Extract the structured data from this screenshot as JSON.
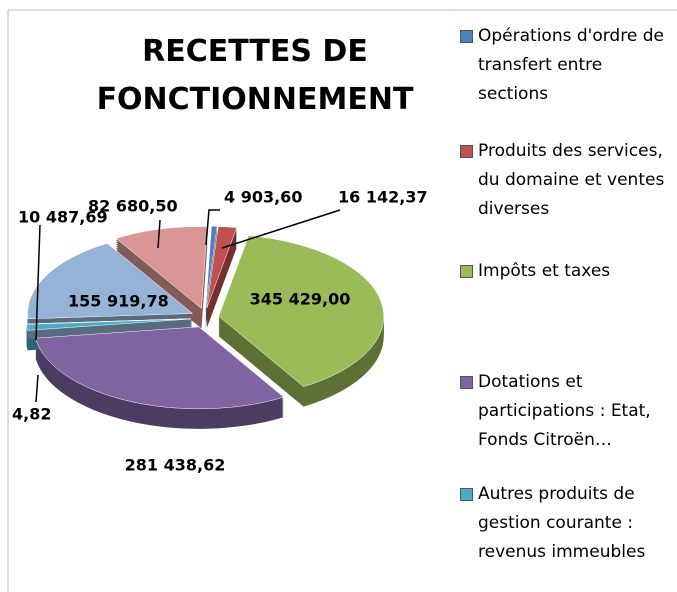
{
  "chart_data": {
    "type": "pie",
    "title": "RECETTES DE FONCTIONNEMENT",
    "categories": [
      "Opérations d'ordre de transfert entre sections",
      "Produits des services, du domaine et ventes diverses",
      "Impôts et taxes",
      "Dotations et participations : Etat, Fonds Citroën…",
      "Autres produits de gestion courante : revenus immeubles",
      null,
      null,
      null
    ],
    "values": [
      4903.6,
      16142.37,
      345429.0,
      281438.62,
      10487.69,
      4.82,
      155919.78,
      82680.5
    ],
    "value_labels": [
      "4 903,60",
      "16 142,37",
      "345 429,00",
      "281 438,62",
      "10 487,69",
      "4,82",
      "155 919,78",
      "82 680,50"
    ],
    "colors": [
      "#4f81bd",
      "#c0504d",
      "#9bbb59",
      "#8064a2",
      "#4bacc6",
      "#f79646",
      "#95b3d7",
      "#d99694"
    ]
  }
}
